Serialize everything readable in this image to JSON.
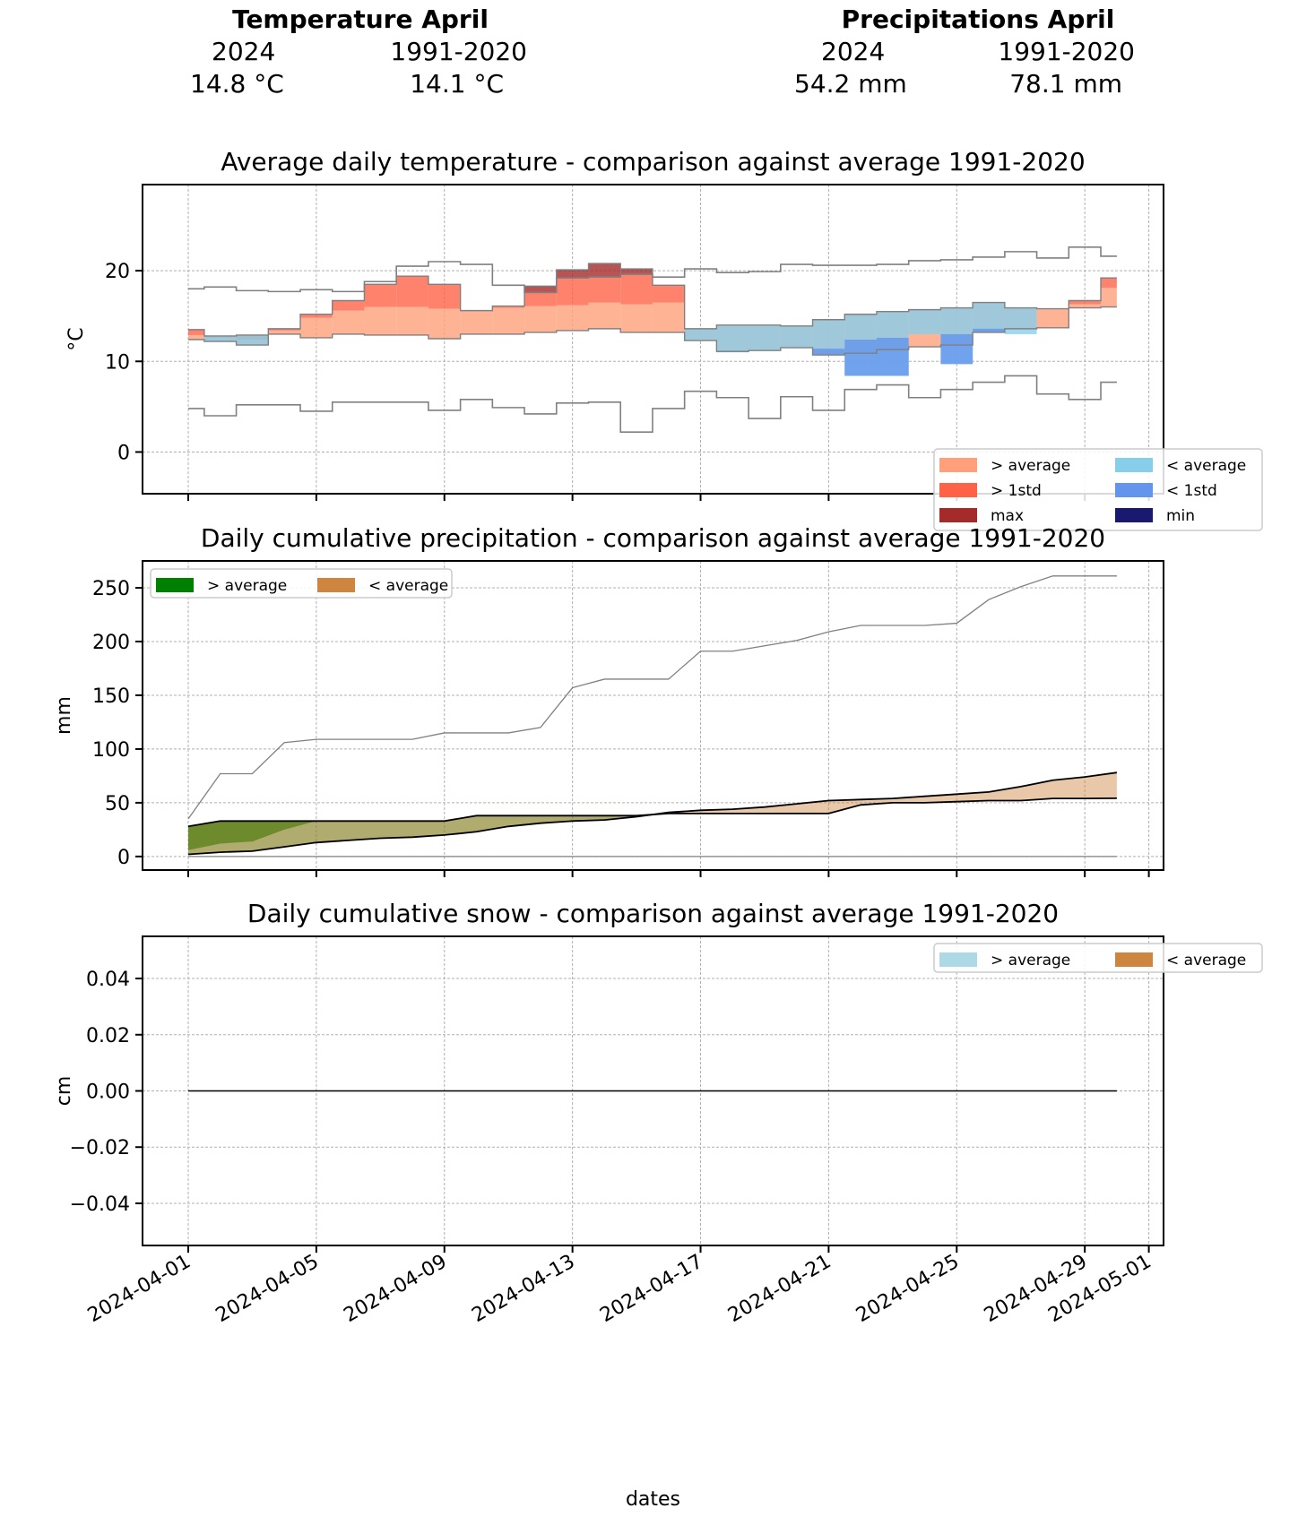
{
  "summary": {
    "temperature": {
      "title": "Temperature April",
      "col1_label": "2024",
      "col2_label": "1991-2020",
      "col1_value": "14.8 °C",
      "col2_value": "14.1 °C"
    },
    "precipitation": {
      "title": "Precipitations April",
      "col1_label": "2024",
      "col2_label": "1991-2020",
      "col1_value": "54.2 mm",
      "col2_value": "78.1 mm"
    }
  },
  "x_axis": {
    "label": "dates",
    "ticks": [
      "2024-04-01",
      "2024-04-05",
      "2024-04-09",
      "2024-04-13",
      "2024-04-17",
      "2024-04-21",
      "2024-04-25",
      "2024-04-29",
      "2024-05-01"
    ],
    "tick_days": [
      1,
      5,
      9,
      13,
      17,
      21,
      25,
      29,
      31
    ]
  },
  "colors": {
    "above_avg": "#ffa07a",
    "above_std": "#ff6347",
    "max": "#a52a2a",
    "below_avg": "#87ceeb",
    "below_std": "#6495ed",
    "min": "#191970",
    "precip_above": "#008000",
    "precip_below": "#cd853f",
    "snow_above": "#add8e6",
    "snow_below": "#cd853f"
  },
  "chart_data": [
    {
      "type": "area",
      "title": "Average daily temperature - comparison against average 1991-2020",
      "ylabel": "°C",
      "xlabel": "",
      "ylim": [
        -4.6,
        29.5
      ],
      "yticks": [
        0,
        10,
        20
      ],
      "grid": true,
      "legend": {
        "position": "bottom-right",
        "entries": [
          {
            "label": "> average",
            "color_key": "above_avg"
          },
          {
            "label": "< average",
            "color_key": "below_avg"
          },
          {
            "label": "> 1std",
            "color_key": "above_std"
          },
          {
            "label": "< 1std",
            "color_key": "below_std"
          },
          {
            "label": "max",
            "color_key": "max"
          },
          {
            "label": "min",
            "color_key": "min"
          }
        ]
      },
      "days": [
        1,
        2,
        3,
        4,
        5,
        6,
        7,
        8,
        9,
        10,
        11,
        12,
        13,
        14,
        15,
        16,
        17,
        18,
        19,
        20,
        21,
        22,
        23,
        24,
        25,
        26,
        27,
        28,
        29,
        30
      ],
      "series": [
        {
          "name": "2024",
          "values": [
            13.5,
            12.8,
            12.9,
            13.6,
            15.2,
            16.7,
            18.5,
            19.4,
            18.5,
            15.6,
            16.1,
            18.3,
            20.1,
            20.8,
            20.2,
            18.4,
            13.6,
            14.0,
            14.0,
            13.9,
            14.6,
            15.2,
            15.5,
            15.7,
            15.9,
            16.5,
            15.9,
            15.8,
            16.7,
            19.2
          ]
        },
        {
          "name": "average",
          "values": [
            12.4,
            12.2,
            11.8,
            13.0,
            12.6,
            13.0,
            12.9,
            12.9,
            12.5,
            13.0,
            13.0,
            13.2,
            13.4,
            13.6,
            13.2,
            13.2,
            12.3,
            11.1,
            11.2,
            11.5,
            10.7,
            10.9,
            11.3,
            11.6,
            11.8,
            13.2,
            13.6,
            13.7,
            15.9,
            16.0
          ]
        },
        {
          "name": "avg_plus_std",
          "values": [
            12.9,
            12.6,
            12.4,
            13.4,
            14.8,
            15.6,
            16.0,
            16.0,
            15.8,
            15.7,
            15.9,
            16.1,
            16.2,
            16.5,
            16.3,
            16.5,
            14.0,
            14.2,
            14.2,
            14.0,
            14.6,
            15.0,
            15.5,
            15.7,
            15.9,
            16.5,
            15.9,
            15.8,
            16.3,
            18.1
          ]
        },
        {
          "name": "avg_minus_std",
          "values": [
            12.4,
            12.2,
            11.8,
            13.0,
            12.6,
            13.0,
            12.9,
            12.9,
            12.5,
            13.0,
            13.0,
            13.2,
            13.4,
            13.6,
            13.2,
            13.2,
            12.3,
            11.1,
            11.1,
            11.5,
            11.4,
            12.3,
            12.6,
            12.9,
            13.0,
            13.5,
            13.6,
            13.7,
            15.9,
            16.0
          ]
        },
        {
          "name": "max",
          "values": [
            18.0,
            18.2,
            17.8,
            17.7,
            17.9,
            17.7,
            18.8,
            20.5,
            21.0,
            20.7,
            18.4,
            17.6,
            19.2,
            19.3,
            19.6,
            19.3,
            20.2,
            19.8,
            19.9,
            20.7,
            20.6,
            20.6,
            20.7,
            21.1,
            21.2,
            21.5,
            22.1,
            21.4,
            22.6,
            21.6
          ]
        },
        {
          "name": "min",
          "values": [
            4.8,
            4.0,
            5.2,
            5.2,
            4.5,
            5.5,
            5.5,
            5.5,
            4.6,
            5.8,
            4.9,
            4.2,
            5.4,
            5.5,
            2.2,
            4.8,
            6.7,
            6.0,
            3.7,
            6.1,
            4.6,
            6.9,
            7.4,
            6.0,
            6.9,
            7.7,
            8.4,
            6.4,
            5.8,
            7.7
          ]
        }
      ]
    },
    {
      "type": "area",
      "title": "Daily cumulative precipitation - comparison against average 1991-2020",
      "ylabel": "mm",
      "xlabel": "",
      "ylim": [
        -12.6,
        275
      ],
      "yticks": [
        0,
        50,
        100,
        150,
        200,
        250
      ],
      "grid": true,
      "legend": {
        "position": "top-left",
        "entries": [
          {
            "label": "> average",
            "color_key": "precip_above"
          },
          {
            "label": "< average",
            "color_key": "precip_below"
          }
        ]
      },
      "days": [
        1,
        2,
        3,
        4,
        5,
        6,
        7,
        8,
        9,
        10,
        11,
        12,
        13,
        14,
        15,
        16,
        17,
        18,
        19,
        20,
        21,
        22,
        23,
        24,
        25,
        26,
        27,
        28,
        29,
        30
      ],
      "series": [
        {
          "name": "2024",
          "values": [
            28,
            33,
            33,
            33,
            33,
            33,
            33,
            33,
            33,
            38,
            38,
            38,
            38,
            38,
            38,
            40,
            40,
            40,
            40,
            40,
            40,
            48,
            50,
            50,
            51,
            52,
            52,
            54,
            54,
            54.2
          ]
        },
        {
          "name": "average",
          "values": [
            2,
            4,
            5,
            9,
            13,
            15,
            17,
            18,
            20,
            23,
            28,
            31,
            33,
            34,
            37,
            41,
            43,
            44,
            46,
            49,
            52,
            53,
            54,
            56,
            58,
            60,
            65,
            71,
            74,
            78.1
          ]
        },
        {
          "name": "avg_plus_std_low",
          "values": [
            6,
            12,
            14,
            25,
            33,
            33,
            33,
            33,
            33,
            38,
            38,
            38,
            38,
            38,
            38,
            40,
            40,
            40,
            40,
            40,
            40,
            48,
            50,
            50,
            51,
            52,
            52,
            54,
            54,
            54.2
          ]
        },
        {
          "name": "max",
          "values": [
            35,
            77,
            77,
            106,
            109,
            109,
            109,
            109,
            115,
            115,
            115,
            120,
            157,
            165,
            165,
            165,
            191,
            191,
            196,
            201,
            209,
            215,
            215,
            215,
            217,
            239,
            251,
            261,
            261,
            261
          ]
        },
        {
          "name": "min",
          "values": [
            0,
            0,
            0,
            0,
            0,
            0,
            0,
            0,
            0,
            0,
            0,
            0,
            0,
            0,
            0,
            0,
            0,
            0,
            0,
            0,
            0,
            0,
            0,
            0,
            0,
            0,
            0,
            0,
            0,
            0
          ]
        }
      ]
    },
    {
      "type": "line",
      "title": "Daily cumulative snow - comparison against average 1991-2020",
      "ylabel": "cm",
      "xlabel": "dates",
      "ylim": [
        -0.055,
        0.055
      ],
      "yticks": [
        -0.04,
        -0.02,
        0.0,
        0.02,
        0.04
      ],
      "ytick_labels": [
        "−0.04",
        "−0.02",
        "0.00",
        "0.02",
        "0.04"
      ],
      "grid": true,
      "legend": {
        "position": "top-right",
        "entries": [
          {
            "label": "> average",
            "color_key": "snow_above"
          },
          {
            "label": "< average",
            "color_key": "snow_below"
          }
        ]
      },
      "days": [
        1,
        30
      ],
      "series": [
        {
          "name": "2024",
          "values": [
            0,
            0
          ]
        }
      ]
    }
  ]
}
